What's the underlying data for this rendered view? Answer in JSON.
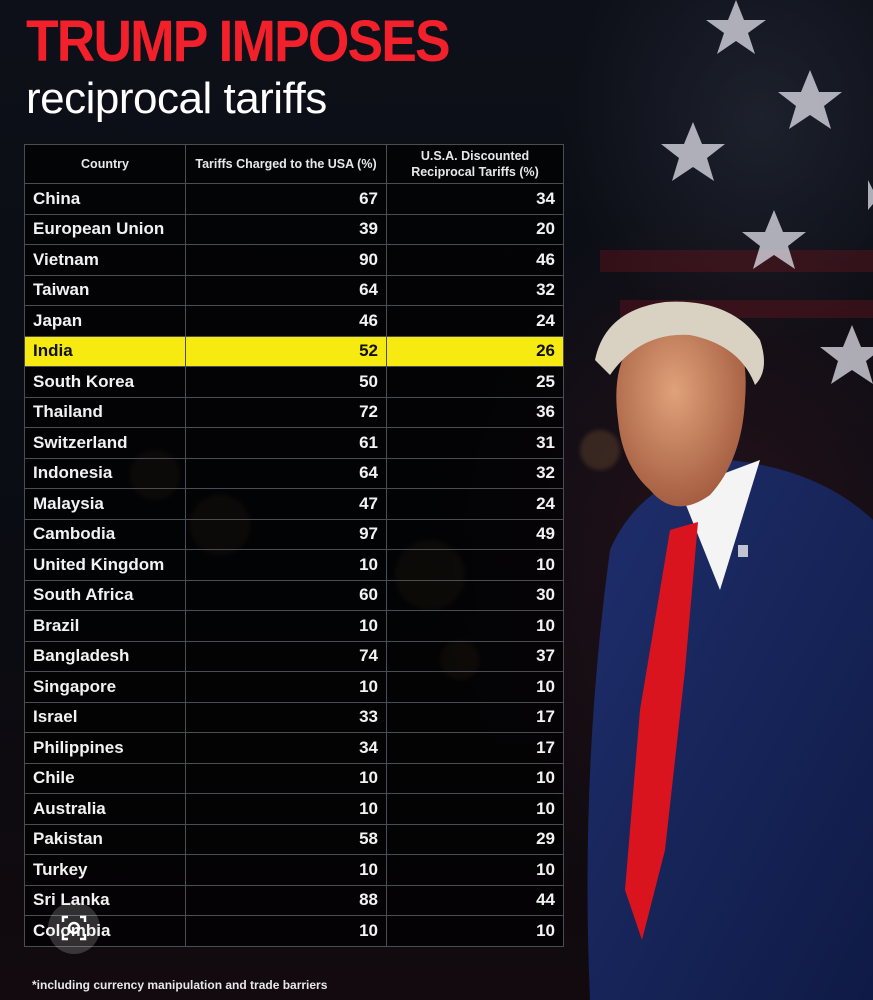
{
  "headline": {
    "title": "TRUMP IMPOSES",
    "subtitle": "reciprocal tariffs"
  },
  "table": {
    "headers": {
      "country": "Country",
      "charged": "Tariffs Charged to the USA (%)",
      "discounted": "U.S.A. Discounted Reciprocal Tariffs (%)"
    },
    "rows": [
      {
        "country": "China",
        "charged": "67",
        "discounted": "34"
      },
      {
        "country": "European Union",
        "charged": "39",
        "discounted": "20"
      },
      {
        "country": "Vietnam",
        "charged": "90",
        "discounted": "46"
      },
      {
        "country": "Taiwan",
        "charged": "64",
        "discounted": "32"
      },
      {
        "country": "Japan",
        "charged": "46",
        "discounted": "24"
      },
      {
        "country": "India",
        "charged": "52",
        "discounted": "26",
        "highlight": true
      },
      {
        "country": "South Korea",
        "charged": "50",
        "discounted": "25"
      },
      {
        "country": "Thailand",
        "charged": "72",
        "discounted": "36"
      },
      {
        "country": "Switzerland",
        "charged": "61",
        "discounted": "31"
      },
      {
        "country": "Indonesia",
        "charged": "64",
        "discounted": "32"
      },
      {
        "country": "Malaysia",
        "charged": "47",
        "discounted": "24"
      },
      {
        "country": "Cambodia",
        "charged": "97",
        "discounted": "49"
      },
      {
        "country": "United Kingdom",
        "charged": "10",
        "discounted": "10"
      },
      {
        "country": "South Africa",
        "charged": "60",
        "discounted": "30"
      },
      {
        "country": "Brazil",
        "charged": "10",
        "discounted": "10"
      },
      {
        "country": "Bangladesh",
        "charged": "74",
        "discounted": "37"
      },
      {
        "country": "Singapore",
        "charged": "10",
        "discounted": "10"
      },
      {
        "country": "Israel",
        "charged": "33",
        "discounted": "17"
      },
      {
        "country": "Philippines",
        "charged": "34",
        "discounted": "17"
      },
      {
        "country": "Chile",
        "charged": "10",
        "discounted": "10"
      },
      {
        "country": "Australia",
        "charged": "10",
        "discounted": "10"
      },
      {
        "country": "Pakistan",
        "charged": "58",
        "discounted": "29"
      },
      {
        "country": "Turkey",
        "charged": "10",
        "discounted": "10"
      },
      {
        "country": "Sri Lanka",
        "charged": "88",
        "discounted": "44"
      },
      {
        "country": "Colombia",
        "charged": "10",
        "discounted": "10"
      }
    ]
  },
  "footnote": "*including currency manipulation and trade barriers",
  "overlay": {
    "icon": "image-search-icon"
  },
  "colors": {
    "title_red": "#f2202a",
    "highlight_yellow": "#f6ea10",
    "background": "#0b0d14"
  }
}
